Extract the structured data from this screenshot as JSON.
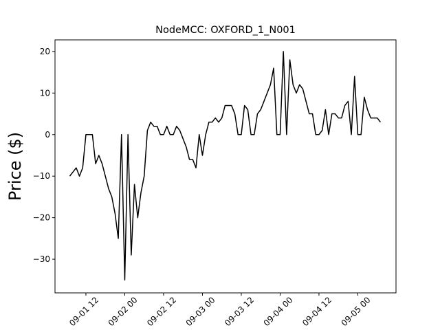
{
  "chart_data": {
    "type": "line",
    "title": "NodeMCC: OXFORD_1_N001",
    "y_label": "Price ($)",
    "x": [
      7,
      8,
      9,
      10,
      11,
      12,
      13,
      14,
      15,
      16,
      17,
      18,
      19,
      20,
      21,
      22,
      23,
      24,
      25,
      26,
      27,
      28,
      29,
      30,
      31,
      32,
      33,
      34,
      35,
      36,
      37,
      38,
      39,
      40,
      41,
      42,
      43,
      44,
      45,
      46,
      47,
      48,
      49,
      50,
      51,
      52,
      53,
      54,
      55,
      56,
      57,
      58,
      59,
      60,
      61,
      62,
      63,
      64,
      65,
      66,
      67,
      68,
      69,
      70,
      71,
      72,
      73,
      74,
      75,
      76,
      77,
      78,
      79,
      80,
      81,
      82,
      83,
      84,
      85,
      86,
      87,
      88,
      89,
      90,
      91,
      92,
      93,
      94,
      95,
      96,
      97,
      98,
      99,
      100,
      101,
      102,
      103
    ],
    "series": [
      {
        "name": "Price",
        "color": "#000000",
        "values": [
          -10,
          -9,
          -8,
          -10,
          -8,
          0,
          0,
          0,
          -7,
          -5,
          -7,
          -10,
          -13,
          -15,
          -19,
          -25,
          0,
          -35,
          0,
          -29,
          -12,
          -20,
          -14,
          -10,
          1,
          3,
          2,
          2,
          0,
          0,
          2,
          0,
          0,
          2,
          1,
          -1,
          -3,
          -6,
          -6,
          -8,
          0,
          -5,
          0,
          3,
          3,
          4,
          3,
          4,
          7,
          7,
          7,
          5,
          0,
          0,
          7,
          6,
          0,
          0,
          5,
          6,
          8,
          10,
          12,
          16,
          0,
          0,
          20,
          0,
          18,
          12,
          10,
          12,
          11,
          8,
          5,
          5,
          0,
          0,
          1,
          6,
          0,
          5,
          5,
          4,
          4,
          7,
          8,
          0,
          14,
          0,
          0,
          9,
          6,
          4,
          4,
          4,
          3
        ]
      }
    ],
    "xlim": [
      2.45,
      107.8
    ],
    "xticks": [
      {
        "value": 12,
        "label": "09-01 12"
      },
      {
        "value": 24,
        "label": "09-02 00"
      },
      {
        "value": 36,
        "label": "09-02 12"
      },
      {
        "value": 48,
        "label": "09-03 00"
      },
      {
        "value": 60,
        "label": "09-03 12"
      },
      {
        "value": 72,
        "label": "09-04 00"
      },
      {
        "value": 84,
        "label": "09-04 12"
      },
      {
        "value": 96,
        "label": "09-05 00"
      }
    ],
    "ylim": [
      -38.1,
      22.8
    ],
    "yticks": [
      {
        "value": -30,
        "label": "−30"
      },
      {
        "value": -20,
        "label": "−20"
      },
      {
        "value": -10,
        "label": "−10"
      },
      0,
      10,
      20
    ]
  }
}
